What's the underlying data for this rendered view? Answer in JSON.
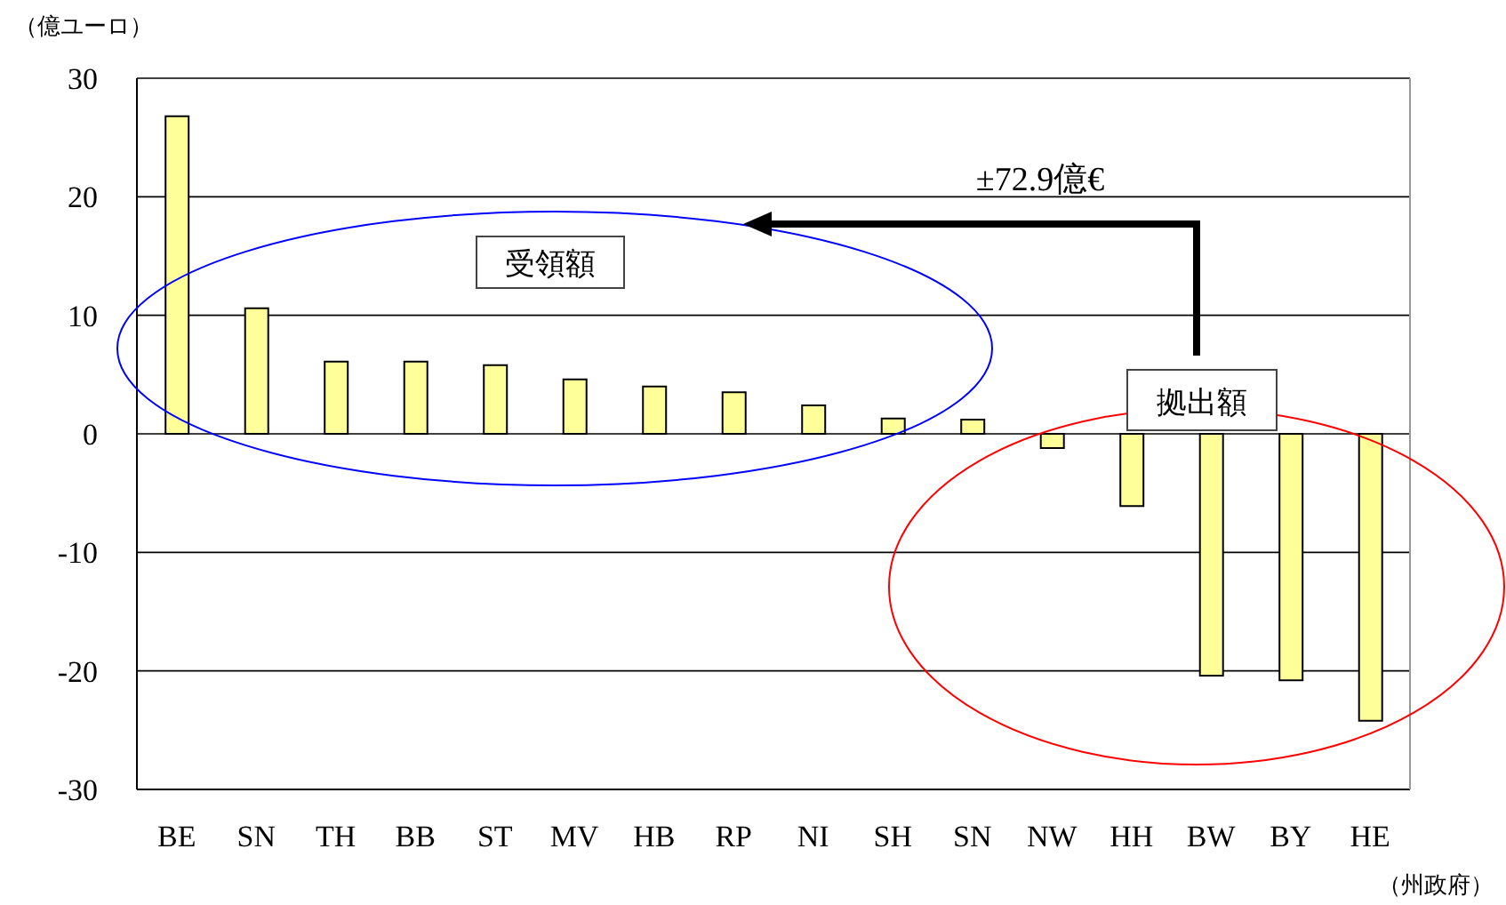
{
  "chart_data": {
    "type": "bar",
    "ylabel": "（億ユーロ）",
    "xlabel": "（州政府）",
    "categories": [
      "BE",
      "SN",
      "TH",
      "BB",
      "ST",
      "MV",
      "HB",
      "RP",
      "NI",
      "SH",
      "SN",
      "NW",
      "HH",
      "BW",
      "BY",
      "HE"
    ],
    "values": [
      26.8,
      10.6,
      6.1,
      6.1,
      5.8,
      4.6,
      4.0,
      3.5,
      2.4,
      1.3,
      1.2,
      -1.2,
      -6.1,
      -20.4,
      -20.8,
      -24.2
    ],
    "color": "#ffff99",
    "ylim": [
      -30,
      30
    ],
    "yticks": [
      -30,
      -20,
      -10,
      0,
      10,
      20,
      30
    ],
    "grid": "y",
    "annotations": [
      "受領額",
      "拠出額",
      "±72.9億€"
    ]
  }
}
